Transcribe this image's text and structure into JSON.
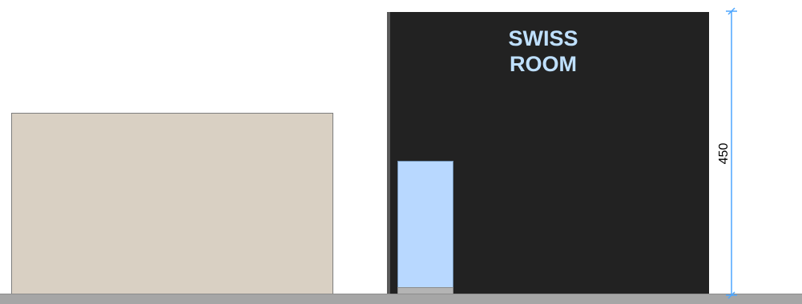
{
  "room": {
    "label_line1": "SWISS",
    "label_line2": "ROOM"
  },
  "dimension": {
    "value": "450",
    "color": "#4da6ff"
  },
  "colors": {
    "room_fill": "#222222",
    "room_label": "#bfe0ff",
    "beige_block": "#d9d0c3",
    "door": "#b8d8ff",
    "ground": "#a6a6a6"
  }
}
